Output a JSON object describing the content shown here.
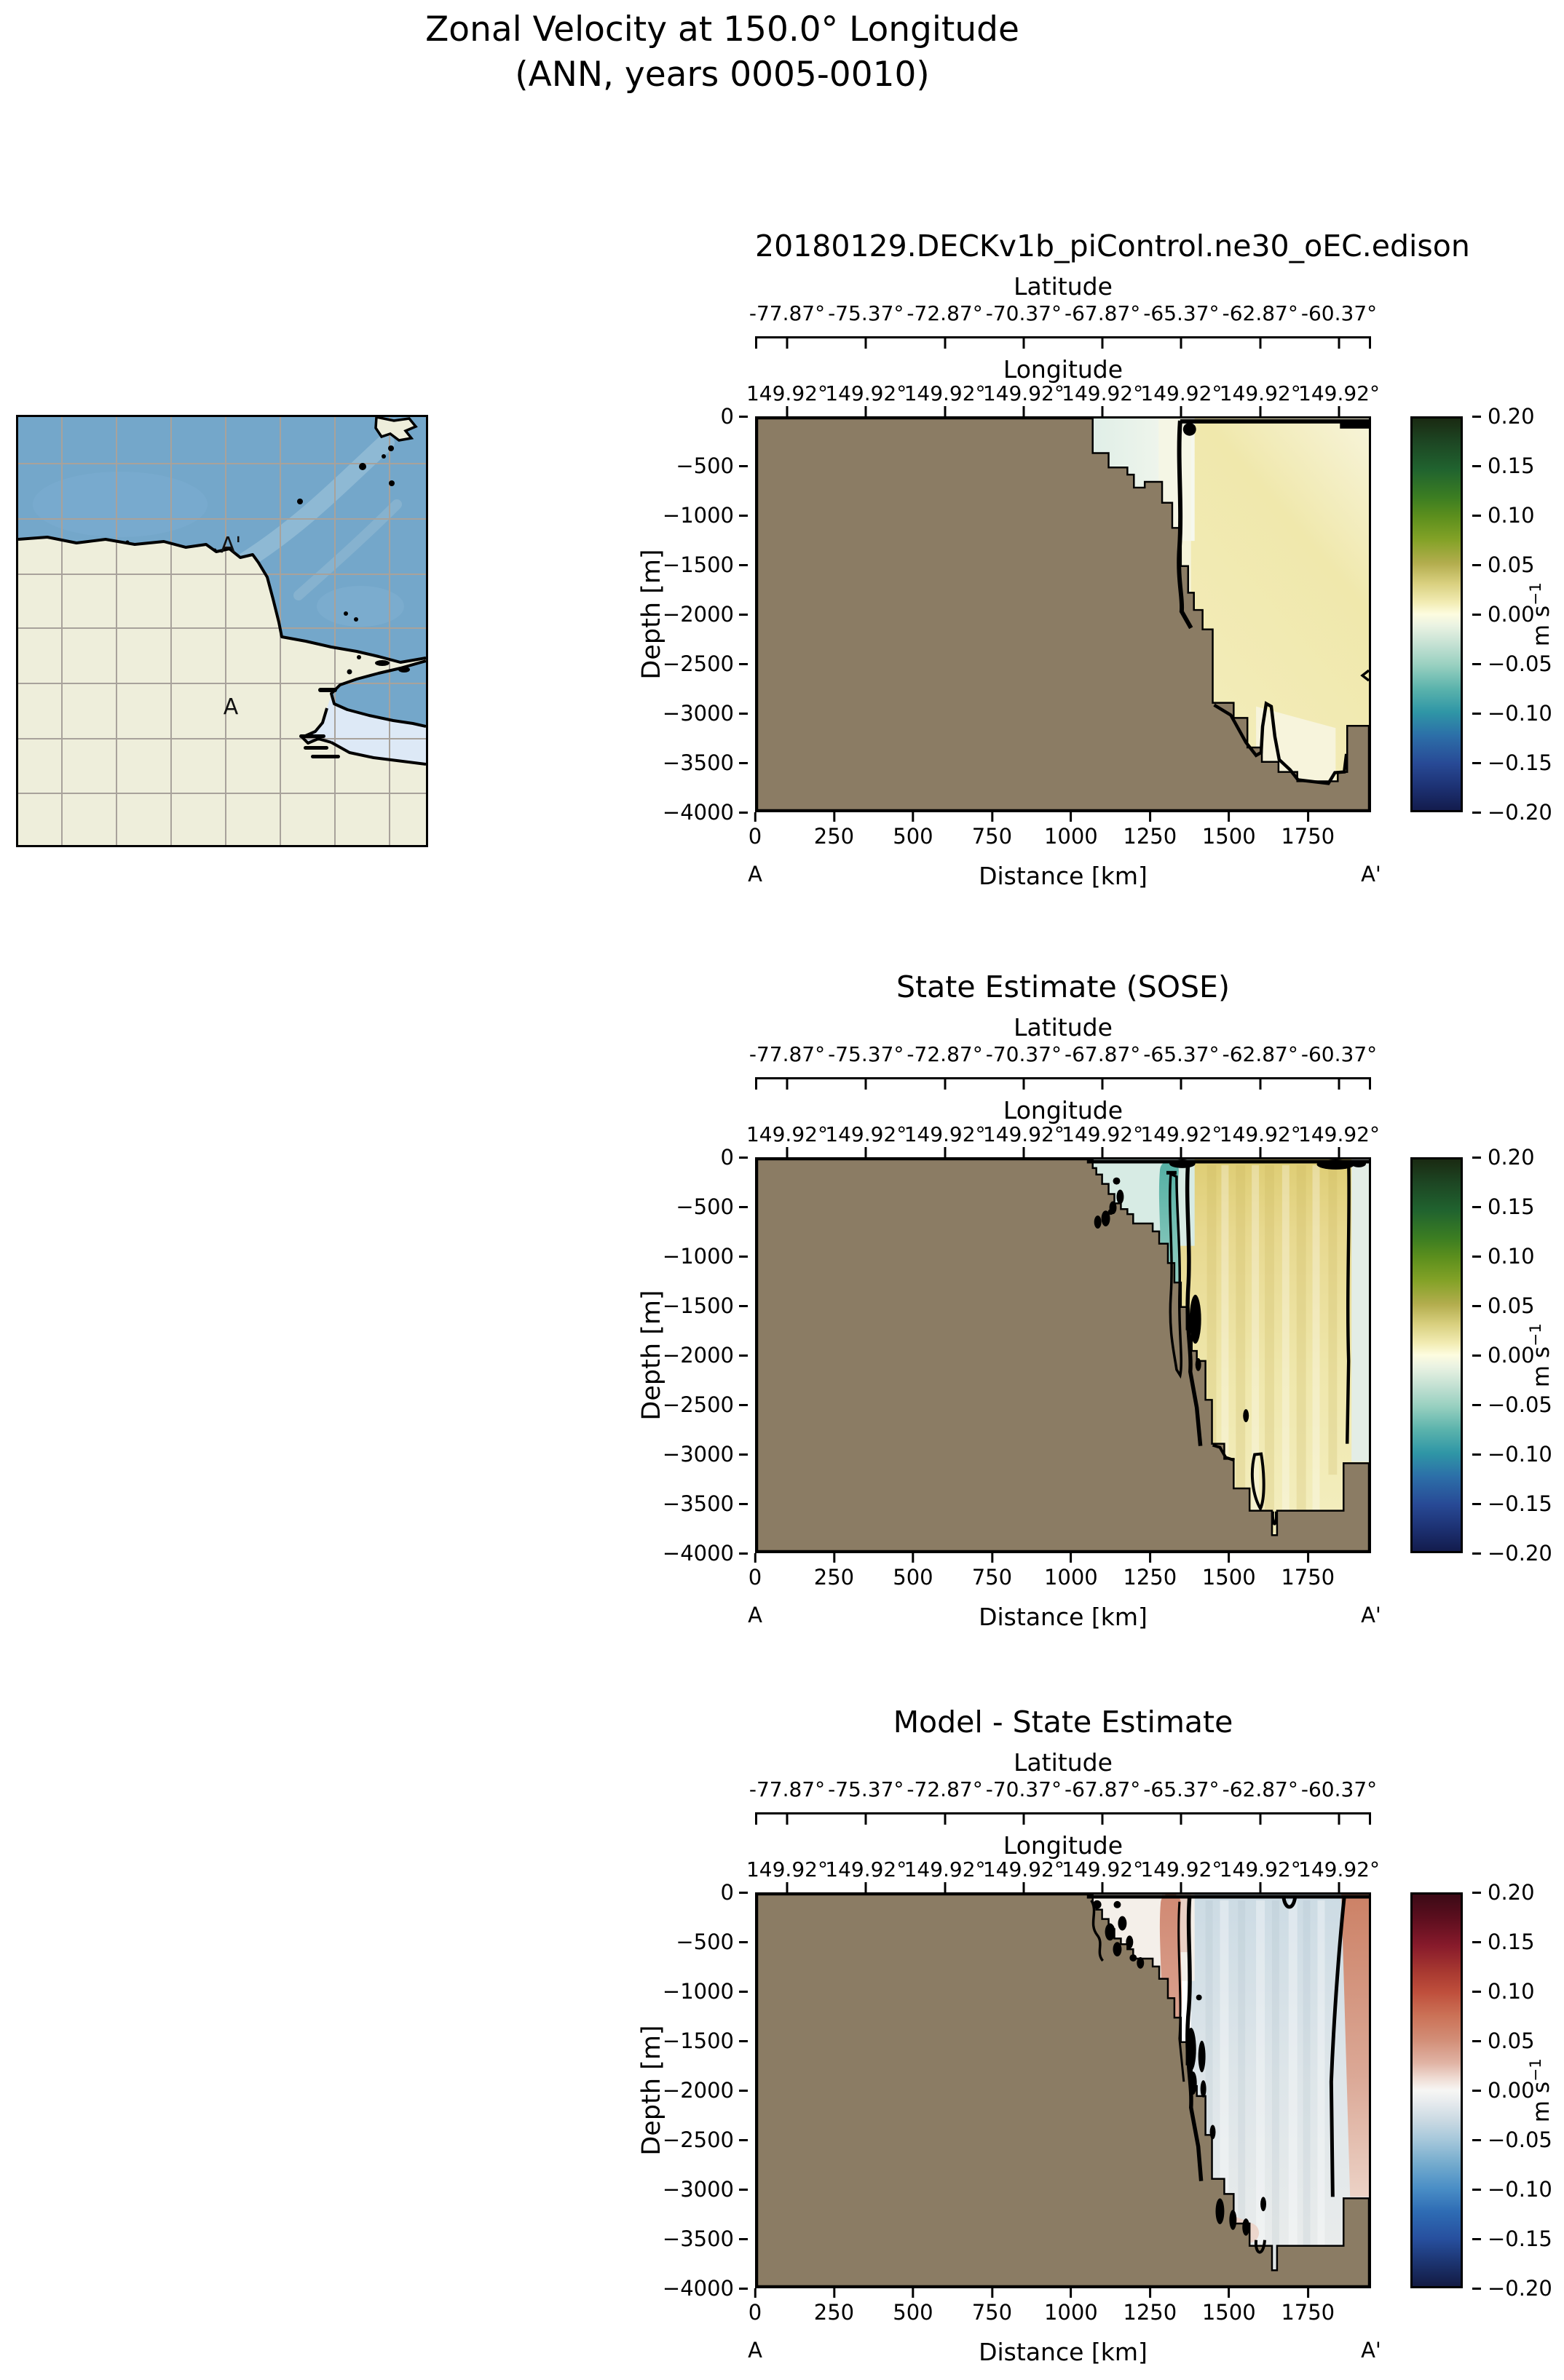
{
  "figure": {
    "title_line1": "Zonal Velocity at 150.0° Longitude",
    "title_line2": "(ANN, years 0005-0010)"
  },
  "map": {
    "label_a": "A",
    "label_a_prime": "A'",
    "colors": {
      "ocean": "#74a7ca",
      "ocean_streak": "#a4c8dc",
      "land": "#eeeedb",
      "ice_shelf": "#dde9f6",
      "gridline": "#a8a29b",
      "coastline": "#000000"
    }
  },
  "axes": {
    "latitude_label": "Latitude",
    "latitude_ticks": [
      "-77.87°",
      "-75.37°",
      "-72.87°",
      "-70.37°",
      "-67.87°",
      "-65.37°",
      "-62.87°",
      "-60.37°"
    ],
    "longitude_label": "Longitude",
    "longitude_ticks": [
      "149.92°",
      "149.92°",
      "149.92°",
      "149.92°",
      "149.92°",
      "149.92°",
      "149.92°",
      "149.92°"
    ],
    "depth_label": "Depth [m]",
    "depth_ticks": [
      "0",
      "−500",
      "−1000",
      "−1500",
      "−2000",
      "−2500",
      "−3000",
      "−3500",
      "−4000"
    ],
    "distance_label": "Distance [km]",
    "distance_ticks": [
      "0",
      "250",
      "500",
      "750",
      "1000",
      "1250",
      "1500",
      "1750"
    ],
    "section_start": "A",
    "section_end": "A'"
  },
  "panels": [
    {
      "title": "20180129.DECKv1b_piControl.ne30_oEC.edison",
      "colormap": "delta"
    },
    {
      "title": "State Estimate (SOSE)",
      "colormap": "delta"
    },
    {
      "title": "Model - State Estimate",
      "colormap": "balance"
    }
  ],
  "colorbar": {
    "ticks": [
      "0.20",
      "0.15",
      "0.10",
      "0.05",
      "0.00",
      "−0.05",
      "−0.10",
      "−0.15",
      "−0.20"
    ],
    "unit": "m s",
    "unit_sup": "−1",
    "gradients": {
      "delta": [
        "#1a2a12 0%",
        "#1d4623 6%",
        "#20632f 13%",
        "#3b7d22 20%",
        "#5c8f1d 25%",
        "#83a227 31%",
        "#b3ad4e 37%",
        "#d8cf7e 42%",
        "#f2ecb4 47%",
        "#fdfce0 50%",
        "#e9f2e2 53%",
        "#c2e0d2 58%",
        "#98d0c0 63%",
        "#5bb3ac 69%",
        "#2f96a6 75%",
        "#2c6fa8 81%",
        "#284a96 88%",
        "#1d3274 94%",
        "#131c4d 100%"
      ],
      "balance": [
        "#3b0a16 0%",
        "#5c0e1e 6%",
        "#871a2b 13%",
        "#a93a31 20%",
        "#bf4f3c 25%",
        "#cb7257 31%",
        "#d28d76 37%",
        "#e0b3a4 43%",
        "#efdcd4 47%",
        "#f7f6f4 50%",
        "#e7ebee 53%",
        "#c8d8e2 58%",
        "#a3c6da 63%",
        "#72aacd 69%",
        "#4a8ec6 75%",
        "#2e6cb4 81%",
        "#274f9e 88%",
        "#1c3470 94%",
        "#131b44 100%"
      ]
    },
    "land_color": "#8b7c64"
  },
  "chart_data": [
    {
      "type": "heatmap",
      "title": "20180129.DECKv1b_piControl.ne30_oEC.edison",
      "xlabel": "Distance [km]",
      "ylabel": "Depth [m]",
      "xlim": [
        0,
        1950
      ],
      "ylim": [
        -4000,
        0
      ],
      "x_ticks": [
        0,
        250,
        500,
        750,
        1000,
        1250,
        1500,
        1750
      ],
      "y_ticks": [
        0,
        -500,
        -1000,
        -1500,
        -2000,
        -2500,
        -3000,
        -3500,
        -4000
      ],
      "top_axis_latitude_ticks": [
        -77.87,
        -75.37,
        -72.87,
        -70.37,
        -67.87,
        -65.37,
        -62.87,
        -60.37
      ],
      "top_axis_longitude_ticks": [
        149.92,
        149.92,
        149.92,
        149.92,
        149.92,
        149.92,
        149.92,
        149.92
      ],
      "section_endpoints": [
        "A",
        "A'"
      ],
      "colorbar": {
        "label": "m s−1",
        "range": [
          -0.2,
          0.2
        ],
        "tick_step": 0.05,
        "colormap": "cmocean delta (navy-teal-white-yellow-green)"
      },
      "bathymetry_profile_km_m": [
        [
          0,
          0
        ],
        [
          1070,
          0
        ],
        [
          1070,
          -350
        ],
        [
          1120,
          -350
        ],
        [
          1120,
          -500
        ],
        [
          1180,
          -500
        ],
        [
          1180,
          -575
        ],
        [
          1200,
          -575
        ],
        [
          1200,
          -700
        ],
        [
          1235,
          -700
        ],
        [
          1235,
          -650
        ],
        [
          1290,
          -650
        ],
        [
          1290,
          -860
        ],
        [
          1320,
          -860
        ],
        [
          1320,
          -1120
        ],
        [
          1350,
          -1120
        ],
        [
          1350,
          -1510
        ],
        [
          1370,
          -1510
        ],
        [
          1370,
          -1780
        ],
        [
          1390,
          -1780
        ],
        [
          1390,
          -1960
        ],
        [
          1420,
          -1960
        ],
        [
          1420,
          -2160
        ],
        [
          1450,
          -2160
        ],
        [
          1450,
          -2910
        ],
        [
          1520,
          -2910
        ],
        [
          1520,
          -3060
        ],
        [
          1560,
          -3060
        ],
        [
          1560,
          -3360
        ],
        [
          1610,
          -3360
        ],
        [
          1610,
          -3510
        ],
        [
          1660,
          -3510
        ],
        [
          1660,
          -3610
        ],
        [
          1720,
          -3610
        ],
        [
          1720,
          -3710
        ],
        [
          1850,
          -3710
        ],
        [
          1850,
          -3610
        ],
        [
          1880,
          -3610
        ],
        [
          1880,
          -3140
        ],
        [
          1950,
          -3140
        ]
      ],
      "zero_contour": "descends from the surface near x≈1340 km almost vertically to the seafloor at ≈−2100 m; a second zero contour follows the seafloor from x≈1450–1870 km with a closed loop near x≈1620–1700 km",
      "regions": [
        {
          "area": "shelf water x 1070–1340 km, 0 to −850 m",
          "approx_value_ms": -0.01
        },
        {
          "area": "open ocean x 1340–1950 km, full depth",
          "approx_value_ms": 0.02
        },
        {
          "area": "near-surface x 1450–1850 km",
          "approx_value_ms": 0.03
        }
      ]
    },
    {
      "type": "heatmap",
      "title": "State Estimate (SOSE)",
      "xlabel": "Distance [km]",
      "ylabel": "Depth [m]",
      "xlim": [
        0,
        1950
      ],
      "ylim": [
        -4000,
        0
      ],
      "x_ticks": [
        0,
        250,
        500,
        750,
        1000,
        1250,
        1500,
        1750
      ],
      "y_ticks": [
        0,
        -500,
        -1000,
        -1500,
        -2000,
        -2500,
        -3000,
        -3500,
        -4000
      ],
      "top_axis_latitude_ticks": [
        -77.87,
        -75.37,
        -72.87,
        -70.37,
        -67.87,
        -65.37,
        -62.87,
        -60.37
      ],
      "top_axis_longitude_ticks": [
        149.92,
        149.92,
        149.92,
        149.92,
        149.92,
        149.92,
        149.92,
        149.92
      ],
      "section_endpoints": [
        "A",
        "A'"
      ],
      "colorbar": {
        "label": "m s−1",
        "range": [
          -0.2,
          0.2
        ],
        "tick_step": 0.05,
        "colormap": "cmocean delta (navy-teal-white-yellow-green)"
      },
      "bathymetry_profile_km_m": [
        [
          0,
          0
        ],
        [
          1070,
          0
        ],
        [
          1070,
          -90
        ],
        [
          1100,
          -150
        ],
        [
          1120,
          -250
        ],
        [
          1140,
          -350
        ],
        [
          1160,
          -450
        ],
        [
          1180,
          -500
        ],
        [
          1200,
          -560
        ],
        [
          1200,
          -650
        ],
        [
          1260,
          -650
        ],
        [
          1280,
          -730
        ],
        [
          1310,
          -860
        ],
        [
          1330,
          -1050
        ],
        [
          1350,
          -1250
        ],
        [
          1370,
          -1510
        ],
        [
          1385,
          -1730
        ],
        [
          1400,
          -1950
        ],
        [
          1400,
          -2050
        ],
        [
          1430,
          -2450
        ],
        [
          1450,
          -2900
        ],
        [
          1490,
          -3060
        ],
        [
          1520,
          -3360
        ],
        [
          1570,
          -3590
        ],
        [
          1640,
          -3590
        ],
        [
          1640,
          -3840
        ],
        [
          1655,
          -3590
        ],
        [
          1870,
          -3590
        ],
        [
          1870,
          -3100
        ],
        [
          1950,
          -3100
        ]
      ],
      "zero_contour": "wiggly vertical contour near x≈1410 km from surface to ≈−2050 m with closed black cells (e.g. x≈1430 km, −1450 m); another contour near the right edge x≈1920 km from surface to ≈−2900 m",
      "regions": [
        {
          "area": "slope band x 1100–1400 km, 0 to −2400 m",
          "approx_value_ms": -0.05
        },
        {
          "area": "interior column x 1420–1900 km, strongest near surface",
          "approx_value_ms": 0.05
        },
        {
          "area": "right edge strip x 1900–1950 km",
          "approx_value_ms": -0.01
        }
      ]
    },
    {
      "type": "heatmap",
      "title": "Model - State Estimate",
      "xlabel": "Distance [km]",
      "ylabel": "Depth [m]",
      "xlim": [
        0,
        1950
      ],
      "ylim": [
        -4000,
        0
      ],
      "x_ticks": [
        0,
        250,
        500,
        750,
        1000,
        1250,
        1500,
        1750
      ],
      "y_ticks": [
        0,
        -500,
        -1000,
        -1500,
        -2000,
        -2500,
        -3000,
        -3500,
        -4000
      ],
      "top_axis_latitude_ticks": [
        -77.87,
        -75.37,
        -72.87,
        -70.37,
        -67.87,
        -65.37,
        -62.87,
        -60.37
      ],
      "top_axis_longitude_ticks": [
        149.92,
        149.92,
        149.92,
        149.92,
        149.92,
        149.92,
        149.92,
        149.92
      ],
      "section_endpoints": [
        "A",
        "A'"
      ],
      "colorbar": {
        "label": "m s−1",
        "range": [
          -0.2,
          0.2
        ],
        "tick_step": 0.05,
        "colormap": "cmocean balance (navy-blue-white-red-maroon)"
      },
      "bathymetry_profile_km_m": [
        [
          0,
          0
        ],
        [
          1070,
          0
        ],
        [
          1070,
          -90
        ],
        [
          1100,
          -150
        ],
        [
          1120,
          -250
        ],
        [
          1140,
          -350
        ],
        [
          1160,
          -450
        ],
        [
          1180,
          -500
        ],
        [
          1200,
          -560
        ],
        [
          1200,
          -650
        ],
        [
          1260,
          -650
        ],
        [
          1280,
          -730
        ],
        [
          1310,
          -860
        ],
        [
          1330,
          -1050
        ],
        [
          1350,
          -1250
        ],
        [
          1370,
          -1510
        ],
        [
          1385,
          -1730
        ],
        [
          1400,
          -1950
        ],
        [
          1400,
          -2050
        ],
        [
          1430,
          -2450
        ],
        [
          1450,
          -2900
        ],
        [
          1490,
          -3060
        ],
        [
          1520,
          -3360
        ],
        [
          1570,
          -3590
        ],
        [
          1640,
          -3590
        ],
        [
          1640,
          -3840
        ],
        [
          1655,
          -3590
        ],
        [
          1870,
          -3590
        ],
        [
          1870,
          -3100
        ],
        [
          1950,
          -3100
        ]
      ],
      "zero_contour": "many closed contour cells along the slope x 1300–1500 km at all depths; bounding contour near x≈1880 km from surface to the seafloor; small notch contour near x≈1760 km at the surface",
      "regions": [
        {
          "area": "slope band x 1100–1450 km (model too fast eastward)",
          "approx_value_ms": 0.05
        },
        {
          "area": "interior x 1450–1850 km, full depth",
          "approx_value_ms": -0.02
        },
        {
          "area": "right edge strip x 1880–1950 km",
          "approx_value_ms": 0.05
        }
      ]
    }
  ]
}
